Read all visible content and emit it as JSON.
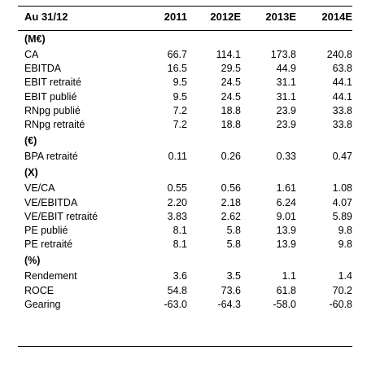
{
  "table": {
    "corner": "Au 31/12",
    "columns": [
      "2011",
      "2012E",
      "2013E",
      "2014E"
    ],
    "sections": [
      {
        "unit": "(M€)",
        "rows": [
          {
            "label": "CA",
            "values": [
              "66.7",
              "114.1",
              "173.8",
              "240.8"
            ]
          },
          {
            "label": "EBITDA",
            "values": [
              "16.5",
              "29.5",
              "44.9",
              "63.8"
            ]
          },
          {
            "label": "EBIT retraité",
            "values": [
              "9.5",
              "24.5",
              "31.1",
              "44.1"
            ]
          },
          {
            "label": "EBIT publié",
            "values": [
              "9.5",
              "24.5",
              "31.1",
              "44.1"
            ]
          },
          {
            "label": "RNpg publié",
            "values": [
              "7.2",
              "18.8",
              "23.9",
              "33.8"
            ]
          },
          {
            "label": "RNpg retraité",
            "values": [
              "7.2",
              "18.8",
              "23.9",
              "33.8"
            ]
          }
        ]
      },
      {
        "unit": "(€)",
        "rows": [
          {
            "label": "BPA retraité",
            "values": [
              "0.11",
              "0.26",
              "0.33",
              "0.47"
            ]
          }
        ]
      },
      {
        "unit": "(X)",
        "rows": [
          {
            "label": "VE/CA",
            "values": [
              "0.55",
              "0.56",
              "1.61",
              "1.08"
            ]
          },
          {
            "label": "VE/EBITDA",
            "values": [
              "2.20",
              "2.18",
              "6.24",
              "4.07"
            ]
          },
          {
            "label": "VE/EBIT retraité",
            "values": [
              "3.83",
              "2.62",
              "9.01",
              "5.89"
            ]
          },
          {
            "label": "PE publié",
            "values": [
              "8.1",
              "5.8",
              "13.9",
              "9.8"
            ]
          },
          {
            "label": "PE retraité",
            "values": [
              "8.1",
              "5.8",
              "13.9",
              "9.8"
            ]
          }
        ]
      },
      {
        "unit": "(%)",
        "rows": [
          {
            "label": "Rendement",
            "values": [
              "3.6",
              "3.5",
              "1.1",
              "1.4"
            ]
          },
          {
            "label": "ROCE",
            "values": [
              "54.8",
              "73.6",
              "61.8",
              "70.2"
            ]
          },
          {
            "label": "Gearing",
            "values": [
              "-63.0",
              "-64.3",
              "-58.0",
              "-60.8"
            ]
          }
        ]
      }
    ]
  }
}
